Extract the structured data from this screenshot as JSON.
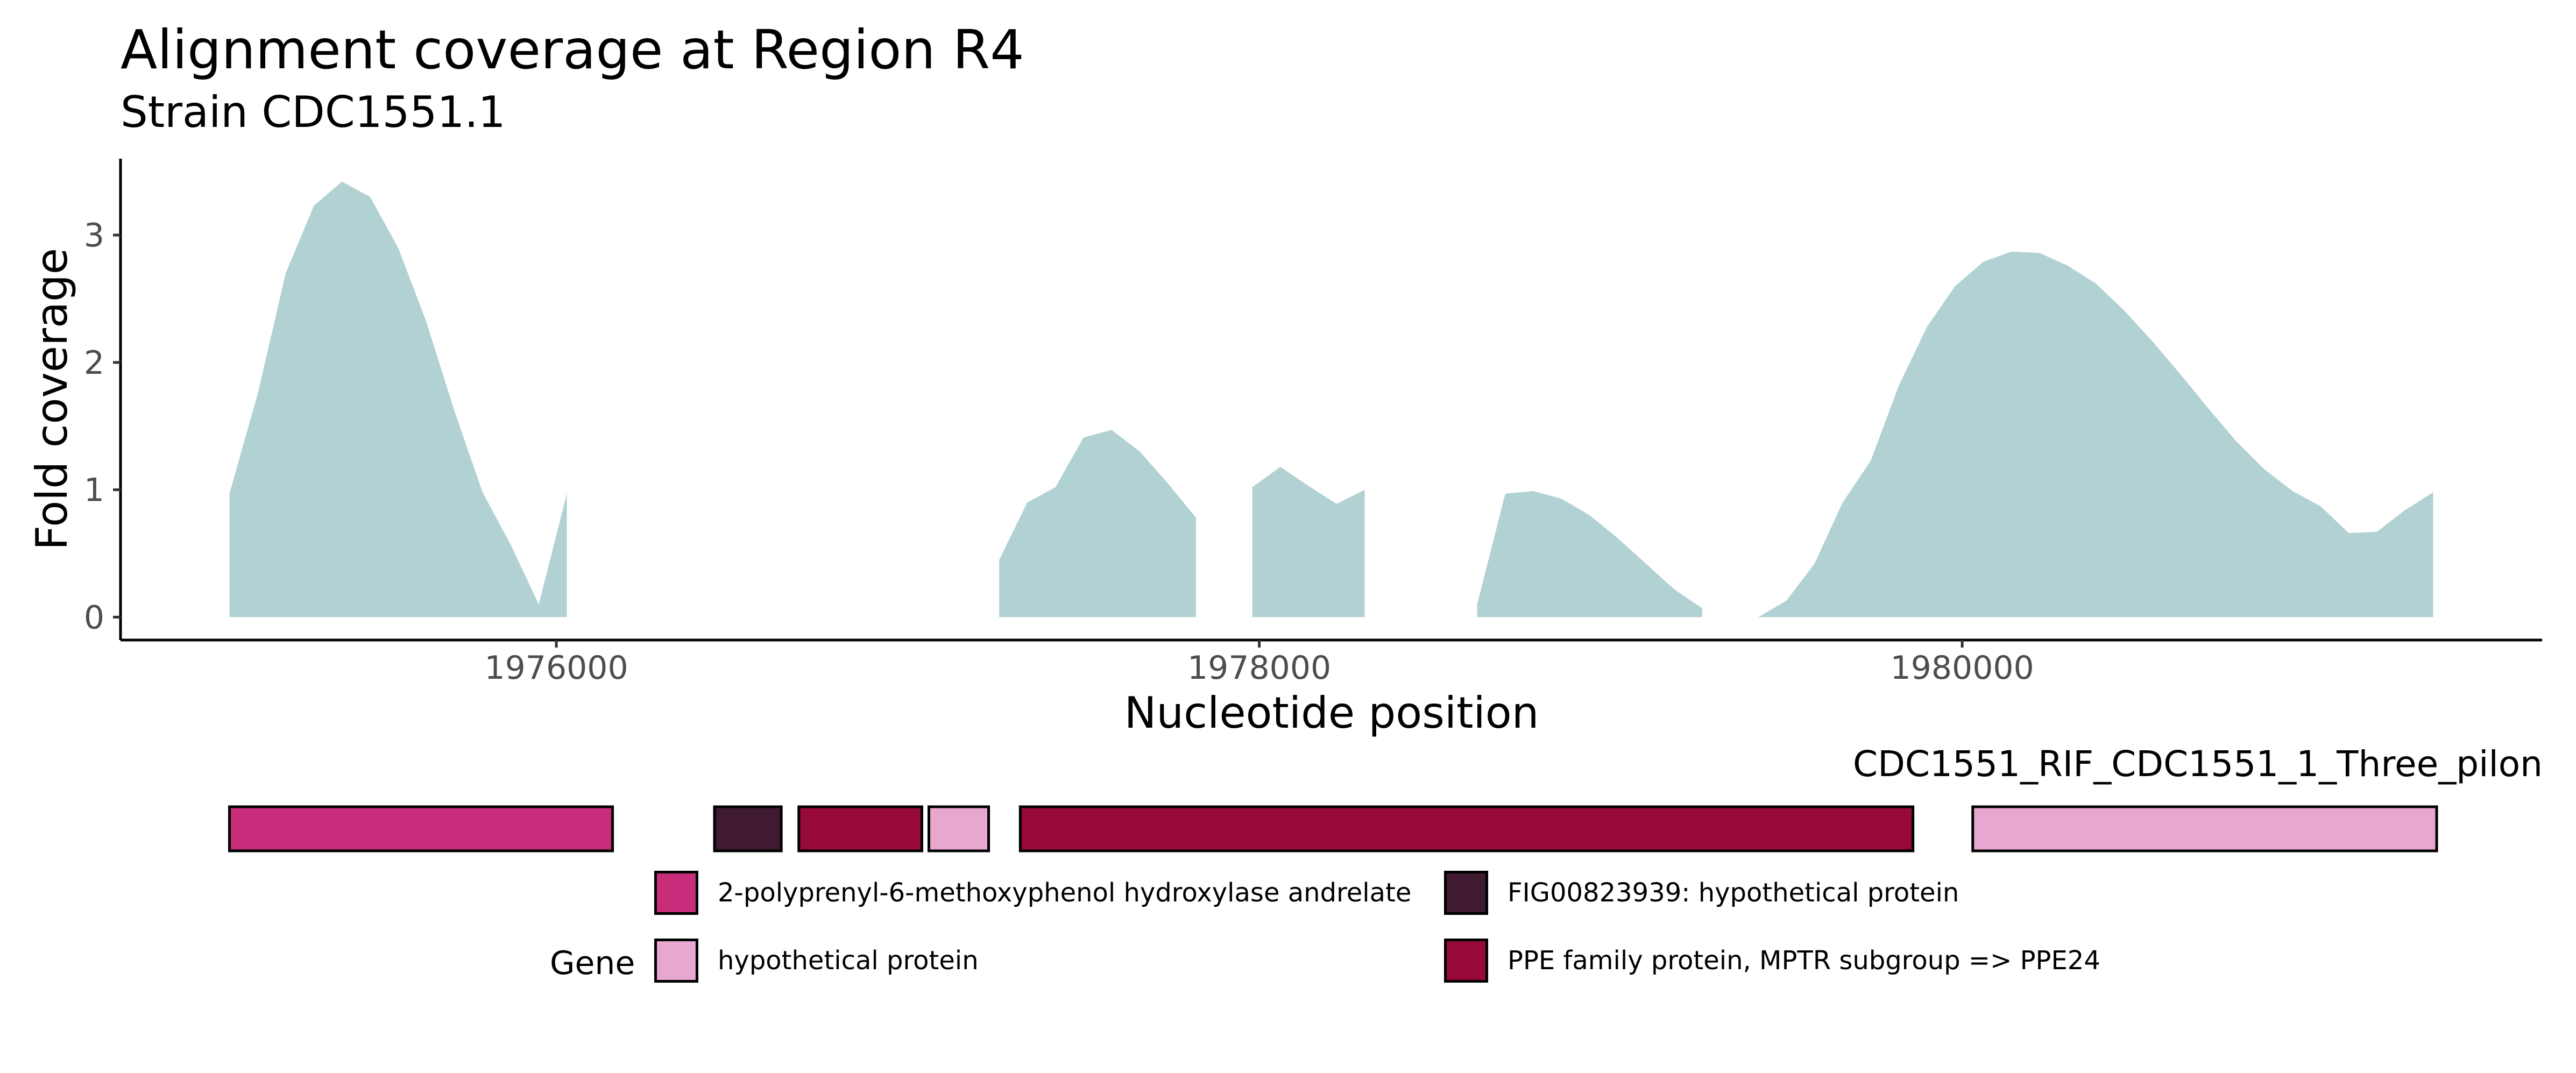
{
  "title": "Alignment coverage at Region R4",
  "subtitle": "Strain CDC1551.1",
  "track_label": "CDC1551_RIF_CDC1551_1_Three_pilon",
  "legend": {
    "title": "Gene",
    "items": [
      {
        "label": "2-polyprenyl-6-methoxyphenol hydroxylase andrelate",
        "color": "#C72D7A"
      },
      {
        "label": "FIG00823939: hypothetical protein",
        "color": "#401A30"
      },
      {
        "label": "hypothetical protein",
        "color": "#E8A7CF"
      },
      {
        "label": "PPE family protein, MPTR subgroup => PPE24",
        "color": "#970939"
      }
    ]
  },
  "chart_data": {
    "type": "area",
    "title": "Alignment coverage at Region R4",
    "subtitle": "Strain CDC1551.1",
    "xlabel": "Nucleotide position",
    "ylabel": "Fold coverage",
    "xlim": [
      1974760,
      1981650
    ],
    "ylim": [
      -0.18,
      3.6
    ],
    "x_ticks": [
      1976000,
      1978000,
      1980000
    ],
    "x_tick_labels": [
      "1976000",
      "1978000",
      "1980000"
    ],
    "y_ticks": [
      0,
      1,
      2,
      3
    ],
    "y_tick_labels": [
      "0",
      "1",
      "2",
      "3"
    ],
    "fill_color": "#B2D1D3",
    "grid": false,
    "series": [
      {
        "x": [
          1975070,
          1975150,
          1975230,
          1975310,
          1975390,
          1975470,
          1975550,
          1975630,
          1975710,
          1975790,
          1975870,
          1975950,
          1976030
        ],
        "y": [
          0.97,
          1.75,
          2.7,
          3.23,
          3.42,
          3.3,
          2.9,
          2.32,
          1.62,
          0.98,
          0.57,
          0.1,
          0.97
        ]
      },
      {
        "x": [
          1977260,
          1977340,
          1977420,
          1977500,
          1977580,
          1977660,
          1977740,
          1977820
        ],
        "y": [
          0.45,
          0.9,
          1.02,
          1.41,
          1.47,
          1.3,
          1.05,
          0.78
        ]
      },
      {
        "x": [
          1977980,
          1978060,
          1978140,
          1978220,
          1978300
        ],
        "y": [
          1.02,
          1.18,
          1.03,
          0.89,
          1.0
        ]
      },
      {
        "x": [
          1978620,
          1978700,
          1978780,
          1978860,
          1978940,
          1979020,
          1979100,
          1979180,
          1979260
        ],
        "y": [
          0.1,
          0.97,
          0.99,
          0.93,
          0.8,
          0.62,
          0.42,
          0.22,
          0.07
        ]
      },
      {
        "x": [
          1979420,
          1979500,
          1979580,
          1979660,
          1979740,
          1979820,
          1979900,
          1979980,
          1980060,
          1980140,
          1980220,
          1980300,
          1980380,
          1980460,
          1980540,
          1980620,
          1980700,
          1980780,
          1980860,
          1980940,
          1981020,
          1981100,
          1981180,
          1981260,
          1981340
        ],
        "y": [
          0.0,
          0.13,
          0.42,
          0.9,
          1.23,
          1.82,
          2.28,
          2.6,
          2.79,
          2.87,
          2.86,
          2.76,
          2.62,
          2.41,
          2.17,
          1.91,
          1.64,
          1.38,
          1.16,
          0.99,
          0.87,
          0.66,
          0.67,
          0.84,
          0.98
        ]
      }
    ],
    "genes": [
      {
        "start": 1975070,
        "end": 1976160,
        "gene": "2-polyprenyl-6-methoxyphenol hydroxylase andrelate"
      },
      {
        "start": 1976450,
        "end": 1976640,
        "gene": "FIG00823939: hypothetical protein"
      },
      {
        "start": 1976690,
        "end": 1977040,
        "gene": "PPE family protein, MPTR subgroup => PPE24"
      },
      {
        "start": 1977060,
        "end": 1977230,
        "gene": "hypothetical protein"
      },
      {
        "start": 1977320,
        "end": 1979860,
        "gene": "PPE family protein, MPTR subgroup => PPE24"
      },
      {
        "start": 1980030,
        "end": 1981350,
        "gene": "hypothetical protein"
      }
    ]
  }
}
